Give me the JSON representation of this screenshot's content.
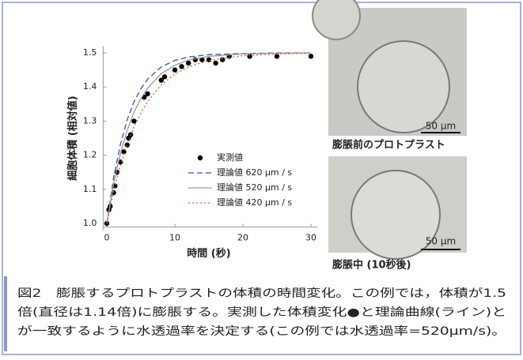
{
  "chart_data": {
    "type": "line",
    "xlabel": "時間 (秒)",
    "ylabel": "細胞体積 (相対値)",
    "xlim": [
      -1,
      31
    ],
    "ylim": [
      0.98,
      1.52
    ],
    "xticks": [
      0,
      10,
      20,
      30
    ],
    "yticks": [
      {
        "value": 1,
        "label": "1.0"
      },
      1.1,
      1.2,
      1.3,
      1.4,
      1.5
    ],
    "legend": "lower right",
    "series": [
      {
        "name": "実測値",
        "type": "scatter",
        "color": "#000000",
        "x": [
          0,
          0.3,
          0.5,
          1,
          1.2,
          1.5,
          2,
          2.5,
          3,
          3.2,
          3.5,
          4,
          5.5,
          6,
          8,
          8.5,
          10,
          11,
          12,
          13,
          14,
          15,
          16,
          17,
          18,
          21,
          25,
          30
        ],
        "values": [
          1.0,
          1.04,
          1.05,
          1.09,
          1.11,
          1.15,
          1.18,
          1.21,
          1.23,
          1.25,
          1.26,
          1.3,
          1.37,
          1.38,
          1.42,
          1.43,
          1.45,
          1.46,
          1.47,
          1.48,
          1.48,
          1.48,
          1.47,
          1.48,
          1.49,
          1.49,
          1.49,
          1.49
        ]
      },
      {
        "name": "理論値 620 µm / s",
        "type": "line",
        "style": "dashed",
        "color": "#3a4fb0",
        "x": [
          0,
          1,
          2,
          3,
          4,
          5,
          6,
          8,
          10,
          12,
          15,
          20,
          25,
          30
        ],
        "values": [
          1.0,
          1.134,
          1.232,
          1.304,
          1.357,
          1.395,
          1.423,
          1.459,
          1.478,
          1.488,
          1.495,
          1.498,
          1.5,
          1.5
        ]
      },
      {
        "name": "理論値 520 µm / s",
        "type": "line",
        "style": "solid",
        "color": "#9a9a9a",
        "x": [
          0,
          1,
          2,
          3,
          4,
          5,
          6,
          8,
          10,
          12,
          15,
          20,
          25,
          30
        ],
        "values": [
          1.0,
          1.116,
          1.205,
          1.273,
          1.326,
          1.366,
          1.397,
          1.439,
          1.464,
          1.479,
          1.49,
          1.497,
          1.499,
          1.5
        ]
      },
      {
        "name": "理論値 420 µm / s",
        "type": "line",
        "style": "dotted",
        "color": "#e05a2a",
        "x": [
          0,
          1,
          2,
          3,
          4,
          5,
          6,
          8,
          10,
          12,
          15,
          20,
          25,
          30
        ],
        "values": [
          1.0,
          1.094,
          1.17,
          1.232,
          1.283,
          1.324,
          1.357,
          1.406,
          1.438,
          1.459,
          1.478,
          1.492,
          1.497,
          1.499
        ]
      }
    ]
  },
  "images": [
    {
      "scale": "50 μm",
      "caption": "膨脹前のプロトプラスト"
    },
    {
      "scale": "50 μm",
      "caption": "膨脹中 (10秒後)"
    }
  ],
  "caption": [
    "図2　膨脹するプロトプラストの体積の時間変化。この例では，体積が1.5",
    "倍(直径は1.14倍)に膨脹する。実測した体積変化●と理論曲線(ライン)と",
    "が一致するように水透過率を決定する(この例では水透過率=520μm/s)。"
  ]
}
